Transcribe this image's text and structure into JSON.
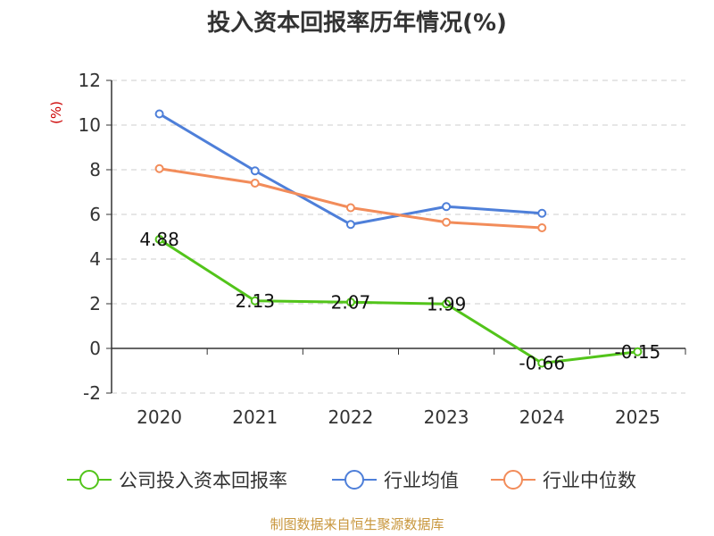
{
  "chart_data": {
    "type": "line",
    "title": "投入资本回报率历年情况(%)",
    "ylabel": "(%)",
    "xlabel": "",
    "categories": [
      "2020",
      "2021",
      "2022",
      "2023",
      "2024",
      "2025"
    ],
    "ylim": [
      -2,
      12
    ],
    "yticks": [
      -2,
      0,
      2,
      4,
      6,
      8,
      10,
      12
    ],
    "grid": true,
    "legend_position": "bottom",
    "series": [
      {
        "name": "公司投入资本回报率",
        "color": "#52c41a",
        "values": [
          4.88,
          2.13,
          2.07,
          1.99,
          -0.66,
          -0.15
        ],
        "labels": [
          "4.88",
          "2.13",
          "2.07",
          "1.99",
          "-0.66",
          "-0.15"
        ]
      },
      {
        "name": "行业均值",
        "color": "#4e7fd9",
        "values": [
          10.5,
          7.95,
          5.55,
          6.35,
          6.05,
          null
        ]
      },
      {
        "name": "行业中位数",
        "color": "#f28c5a",
        "values": [
          8.05,
          7.4,
          6.3,
          5.65,
          5.4,
          null
        ]
      }
    ]
  },
  "source": "制图数据来自恒生聚源数据库"
}
